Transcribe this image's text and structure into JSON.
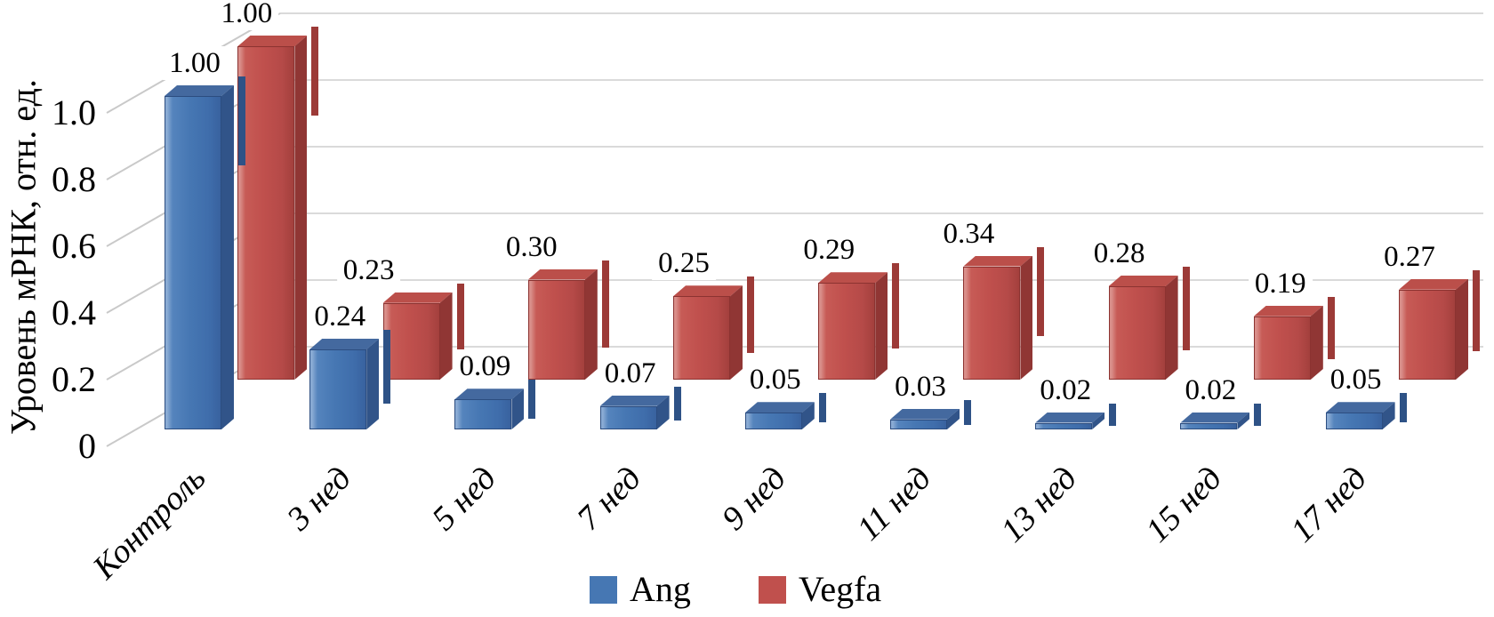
{
  "chart_data": {
    "type": "bar",
    "style": "3d-column",
    "title": "",
    "ylabel": "Уровень мРНК, отн. ед.",
    "xlabel": "",
    "categories": [
      "Контроль",
      "3 нед",
      "5 нед",
      "7 нед",
      "9 нед",
      "11 нед",
      "13 нед",
      "15 нед",
      "17 нед"
    ],
    "series": [
      {
        "name": "Ang",
        "color": "#4677b3",
        "values": [
          1.0,
          0.24,
          0.09,
          0.07,
          0.05,
          0.03,
          0.02,
          0.02,
          0.05
        ],
        "labels": [
          "1.00",
          "0.24",
          "0.09",
          "0.07",
          "0.05",
          "0.03",
          "0.02",
          "0.02",
          "0.05"
        ]
      },
      {
        "name": "Vegfa",
        "color": "#c0504d",
        "values": [
          1.0,
          0.23,
          0.3,
          0.25,
          0.29,
          0.34,
          0.28,
          0.19,
          0.27
        ],
        "labels": [
          "1.00",
          "0.23",
          "0.30",
          "0.25",
          "0.29",
          "0.34",
          "0.28",
          "0.19",
          "0.27"
        ]
      }
    ],
    "yticks": [
      "1.0",
      "0.8",
      "0.6",
      "0.4",
      "0.2",
      "0"
    ],
    "ytick_values": [
      1.0,
      0.8,
      0.6,
      0.4,
      0.2,
      0
    ],
    "ylim": [
      0,
      1.0
    ],
    "grid": true,
    "legend_position": "bottom-center"
  },
  "legend": {
    "items": [
      {
        "label": "Ang",
        "color": "#4677b3"
      },
      {
        "label": "Vegfa",
        "color": "#c0504d"
      }
    ]
  },
  "colors": {
    "ang_front": "#4677b3",
    "ang_side": "#315489",
    "ang_top": "#44699f",
    "vegfa_front": "#c0504d",
    "vegfa_side": "#903634",
    "vegfa_top": "#bb4f4a",
    "gridline": "#dadada",
    "text": "#000000",
    "background": "#ffffff"
  }
}
